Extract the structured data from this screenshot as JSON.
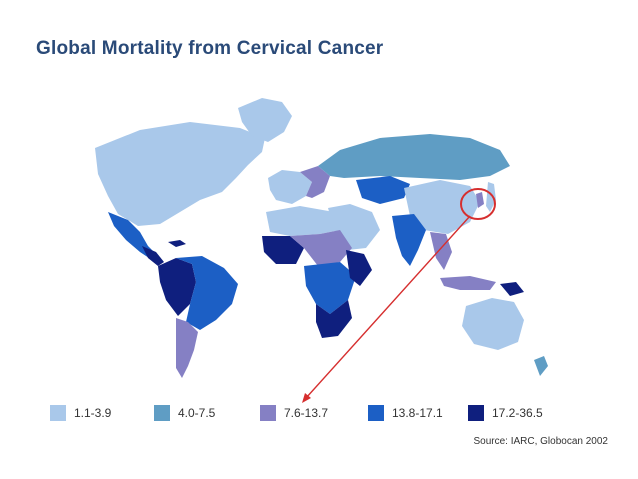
{
  "title": "Global Mortality from Cervical Cancer",
  "source": "Source:  IARC, Globocan 2002",
  "colors": {
    "c1": "#a9c8ea",
    "c2": "#5f9dc4",
    "c3": "#8580c4",
    "c4": "#1c5fc5",
    "c5": "#0f1f7e",
    "highlight": "#d62f2f"
  },
  "legend": [
    {
      "label": "1.1-3.9",
      "color": "#a9c8ea"
    },
    {
      "label": "4.0-7.5",
      "color": "#5f9dc4"
    },
    {
      "label": "7.6-13.7",
      "color": "#8580c4"
    },
    {
      "label": "13.8-17.1",
      "color": "#1c5fc5"
    },
    {
      "label": "17.2-36.5",
      "color": "#0f1f7e"
    }
  ]
}
